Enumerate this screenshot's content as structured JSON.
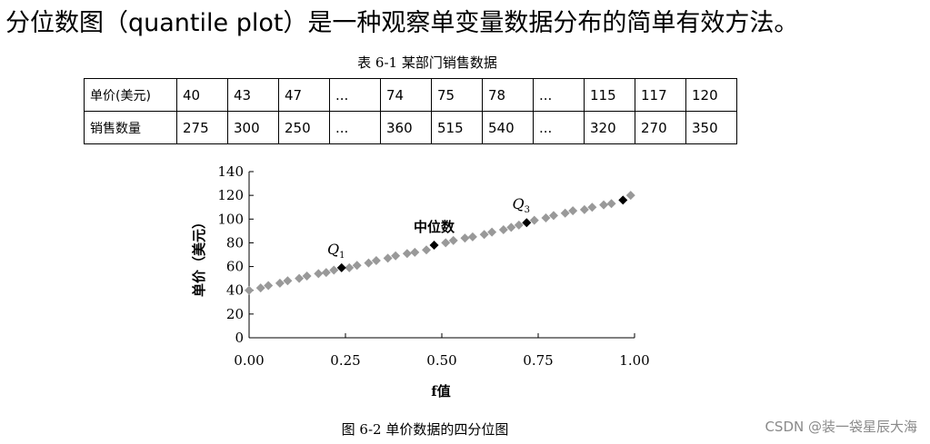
{
  "heading": "分位数图（quantile plot）是一种观察单变量数据分布的简单有效方法。",
  "table_caption": "表 6-1  某部门销售数据",
  "table": {
    "rows": [
      {
        "label": "单价(美元)",
        "cells": [
          "40",
          "43",
          "47",
          "...",
          "74",
          "75",
          "78",
          "...",
          "115",
          "117",
          "120"
        ]
      },
      {
        "label": "销售数量",
        "cells": [
          "275",
          "300",
          "250",
          "...",
          "360",
          "515",
          "540",
          "...",
          "320",
          "270",
          "350"
        ]
      }
    ]
  },
  "chart_data": {
    "type": "scatter",
    "xlabel": "f值",
    "ylabel": "单价（美元）",
    "xlim": [
      0,
      1
    ],
    "ylim": [
      0,
      140
    ],
    "x_ticks": [
      "0.00",
      "0.25",
      "0.50",
      "0.75",
      "1.00"
    ],
    "y_ticks": [
      "0",
      "20",
      "40",
      "60",
      "80",
      "100",
      "120",
      "140"
    ],
    "annotations": [
      {
        "label": "Q",
        "sub": "1",
        "x": 0.24,
        "y": 59
      },
      {
        "label": "中位数",
        "sub": "",
        "x": 0.48,
        "y": 78
      },
      {
        "label": "Q",
        "sub": "3",
        "x": 0.72,
        "y": 97
      }
    ],
    "series": [
      {
        "color": "#999999",
        "points": [
          [
            0.0,
            40
          ],
          [
            0.03,
            42
          ],
          [
            0.05,
            44
          ],
          [
            0.08,
            46
          ],
          [
            0.1,
            48
          ],
          [
            0.13,
            50
          ],
          [
            0.15,
            52
          ],
          [
            0.18,
            54
          ],
          [
            0.2,
            55
          ],
          [
            0.22,
            57
          ],
          [
            0.26,
            59
          ],
          [
            0.28,
            61
          ],
          [
            0.31,
            63
          ],
          [
            0.33,
            65
          ],
          [
            0.36,
            67
          ],
          [
            0.38,
            69
          ],
          [
            0.41,
            71
          ],
          [
            0.43,
            72
          ],
          [
            0.46,
            74
          ],
          [
            0.51,
            80
          ],
          [
            0.53,
            82
          ],
          [
            0.56,
            84
          ],
          [
            0.58,
            85
          ],
          [
            0.61,
            87
          ],
          [
            0.63,
            89
          ],
          [
            0.66,
            91
          ],
          [
            0.68,
            93
          ],
          [
            0.7,
            95
          ],
          [
            0.74,
            99
          ],
          [
            0.77,
            101
          ],
          [
            0.79,
            103
          ],
          [
            0.82,
            105
          ],
          [
            0.84,
            107
          ],
          [
            0.87,
            108
          ],
          [
            0.89,
            110
          ],
          [
            0.92,
            112
          ],
          [
            0.94,
            113
          ],
          [
            0.99,
            120
          ]
        ]
      },
      {
        "color": "#000000",
        "points": [
          [
            0.24,
            59
          ],
          [
            0.48,
            78
          ],
          [
            0.72,
            97
          ],
          [
            0.97,
            116
          ]
        ]
      }
    ]
  },
  "figure_caption": "图 6-2  单价数据的四分位图",
  "watermark": "CSDN @装一袋星辰大海"
}
